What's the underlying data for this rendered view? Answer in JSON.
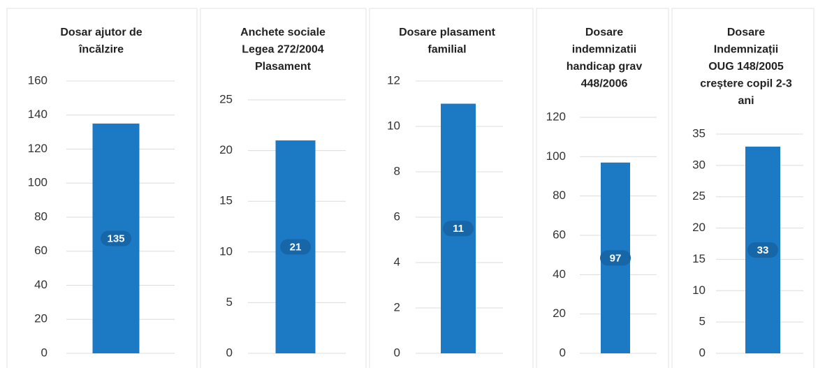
{
  "chart_data": [
    {
      "type": "bar",
      "title": [
        "Dosar ajutor de",
        "încălzire"
      ],
      "categories": [
        null
      ],
      "values": [
        135
      ],
      "color": "#1c79c4",
      "ylim": [
        0,
        160
      ],
      "yticks": [
        0,
        20,
        40,
        60,
        80,
        100,
        120,
        140,
        160
      ],
      "grid": true
    },
    {
      "type": "bar",
      "title": [
        "Anchete sociale",
        "Legea 272/2004",
        "Plasament"
      ],
      "categories": [
        null
      ],
      "values": [
        21
      ],
      "color": "#1c79c4",
      "ylim": [
        0,
        25
      ],
      "yticks": [
        0,
        5,
        10,
        15,
        20,
        25
      ],
      "grid": true
    },
    {
      "type": "bar",
      "title": [
        "Dosare plasament",
        "familial"
      ],
      "categories": [
        null
      ],
      "values": [
        11
      ],
      "color": "#1c79c4",
      "ylim": [
        0,
        12
      ],
      "yticks": [
        0,
        2,
        4,
        6,
        8,
        10,
        12
      ],
      "grid": true
    },
    {
      "type": "bar",
      "title": [
        "Dosare",
        "indemnizatii",
        "handicap grav",
        "448/2006"
      ],
      "categories": [
        null
      ],
      "values": [
        97
      ],
      "color": "#1c79c4",
      "ylim": [
        0,
        120
      ],
      "yticks": [
        0,
        20,
        40,
        60,
        80,
        100,
        120
      ],
      "grid": true
    },
    {
      "type": "bar",
      "title": [
        "Dosare",
        "Indemnizații",
        "OUG 148/2005",
        "creștere copil 2-3",
        "ani"
      ],
      "categories": [
        null
      ],
      "values": [
        33
      ],
      "color": "#1c79c4",
      "ylim": [
        0,
        35
      ],
      "yticks": [
        0,
        5,
        10,
        15,
        20,
        25,
        30,
        35
      ],
      "grid": true
    }
  ]
}
